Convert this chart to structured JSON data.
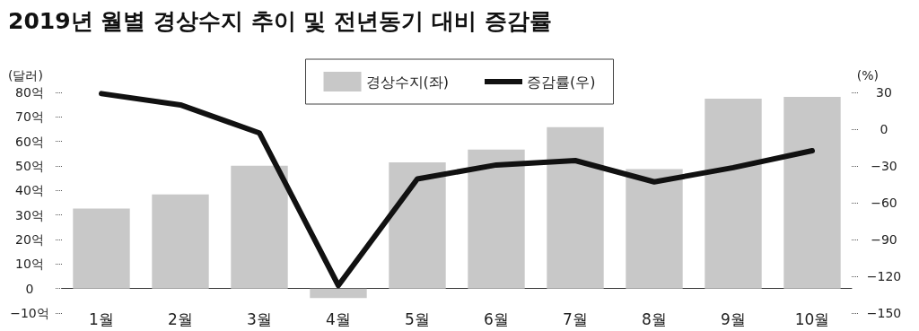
{
  "chart_data": {
    "type": "bar",
    "title": "2019년 월별 경상수지 추이 및 전년동기 대비 증감률",
    "ylabel": "(달러)",
    "y2label": "(%)",
    "categories": [
      "1월",
      "2월",
      "3월",
      "4월",
      "5월",
      "6월",
      "7월",
      "8월",
      "9월",
      "10월"
    ],
    "series": [
      {
        "name": "경상수지(좌)",
        "color": "#c8c8c8",
        "values": [
          32.6,
          38.4,
          50.1,
          -3.9,
          51.5,
          56.7,
          65.8,
          48.7,
          77.4,
          78.2
        ]
      },
      {
        "name": "증감률(우)",
        "type": "line",
        "axis": "y2",
        "color": "#111111",
        "values": [
          29,
          19.8,
          -3.1,
          -127.5,
          -40.6,
          -29.2,
          -25.6,
          -43,
          -31.4,
          -17.6
        ]
      }
    ],
    "ylim": [
      -10,
      80
    ],
    "yticks": [
      {
        "value": -10,
        "label": "−10억"
      },
      {
        "value": 0,
        "label": "0"
      },
      {
        "value": 10,
        "label": "10억"
      },
      {
        "value": 20,
        "label": "20억"
      },
      {
        "value": 30,
        "label": "30억"
      },
      {
        "value": 40,
        "label": "40억"
      },
      {
        "value": 50,
        "label": "50억"
      },
      {
        "value": 60,
        "label": "60억"
      },
      {
        "value": 70,
        "label": "70억"
      },
      {
        "value": 80,
        "label": "80억"
      }
    ],
    "y2lim": [
      -150,
      30
    ],
    "y2ticks": [
      {
        "value": -150,
        "label": "−150"
      },
      {
        "value": -120,
        "label": "−120"
      },
      {
        "value": -90,
        "label": "−90"
      },
      {
        "value": -60,
        "label": "−60"
      },
      {
        "value": -30,
        "label": "−30"
      },
      0,
      30
    ],
    "grid": false,
    "legend": "top",
    "marker": "none",
    "line_style": "solid"
  }
}
